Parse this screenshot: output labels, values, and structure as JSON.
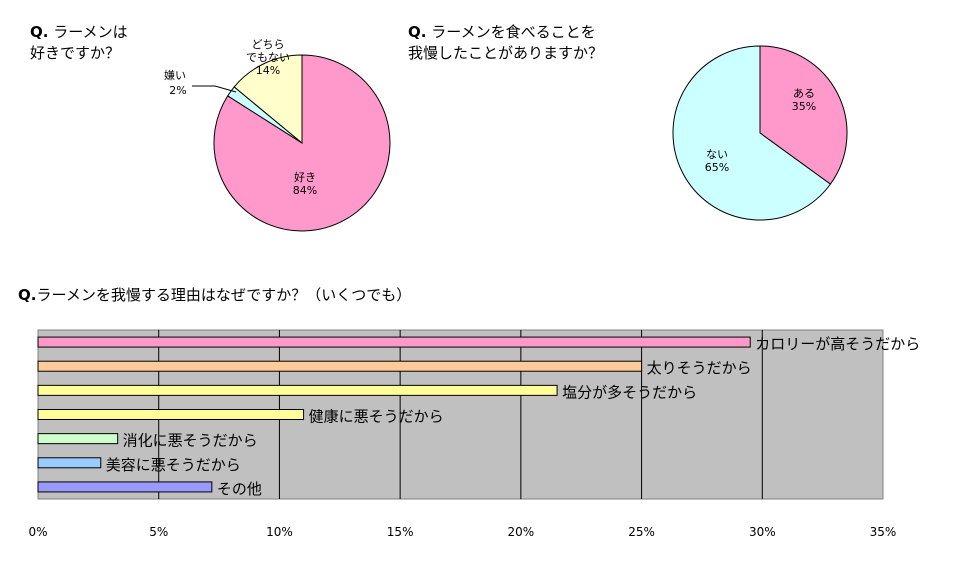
{
  "questions": {
    "q1": {
      "prefix": "Q.",
      "text": " ラーメンは\n好きですか？"
    },
    "q2": {
      "prefix": "Q.",
      "text": " ラーメンを食べることを\n我慢したことがありますか？"
    },
    "q3": {
      "prefix": "Q.",
      "text": "ラーメンを我慢する理由はなぜですか？（いくつでも）"
    }
  },
  "chart_data": [
    {
      "type": "pie",
      "slices": [
        {
          "label": "好き",
          "value": 84,
          "display": "84%",
          "color": "#ff99cc"
        },
        {
          "label": "嫌い",
          "value": 2,
          "display": "2%",
          "color": "#ccffff"
        },
        {
          "label": "どちら\nでもない",
          "value": 14,
          "display": "14%",
          "color": "#ffffcc"
        }
      ]
    },
    {
      "type": "pie",
      "slices": [
        {
          "label": "ある",
          "value": 35,
          "display": "35%",
          "color": "#ff99cc"
        },
        {
          "label": "ない",
          "value": 65,
          "display": "65%",
          "color": "#ccffff"
        }
      ]
    },
    {
      "type": "bar",
      "orientation": "horizontal",
      "categories": [
        "カロリーが高そうだから",
        "太りそうだから",
        "塩分が多そうだから",
        "健康に悪そうだから",
        "消化に悪そうだから",
        "美容に悪そうだから",
        "その他"
      ],
      "values": [
        29.5,
        25.0,
        21.5,
        11.0,
        3.3,
        2.6,
        7.2
      ],
      "colors": [
        "#ff99cc",
        "#ffcc99",
        "#ffff99",
        "#ffff99",
        "#ccffcc",
        "#99ccff",
        "#9999ff"
      ],
      "xlim": [
        0,
        35
      ],
      "xticks": [
        "0%",
        "5%",
        "10%",
        "15%",
        "20%",
        "25%",
        "30%",
        "35%"
      ],
      "plot_background": "#c0c0c0",
      "grid": true
    }
  ]
}
